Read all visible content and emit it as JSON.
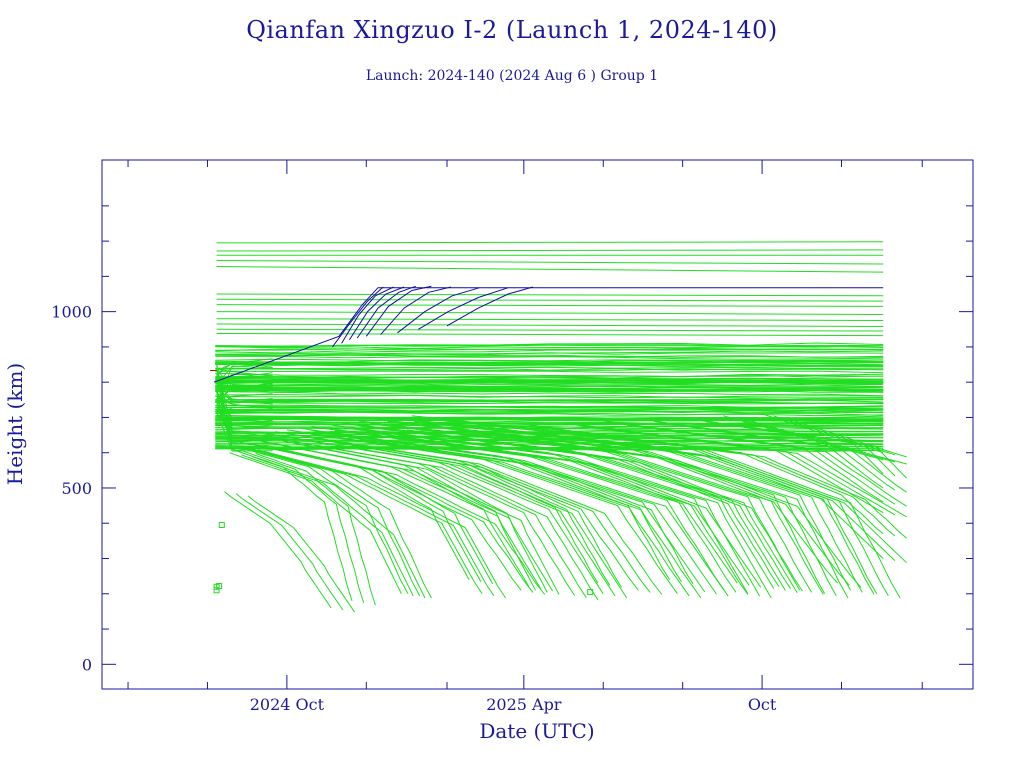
{
  "title": "Qianfan Xingzuo I-2 (Launch 1, 2024-140)",
  "subtitle": "Launch: 2024-140  (2024 Aug  6 )  Group 1",
  "colors": {
    "axis": "#1a1a9a",
    "debris": "#22dd22",
    "satellite": "#1010a0",
    "marker": "#cc0000"
  },
  "chart_data": {
    "type": "line",
    "xlabel": "Date (UTC)",
    "ylabel": "Height (km)",
    "x_axis": {
      "range": [
        "2024-05-12",
        "2026-03-12"
      ],
      "tick_labels": [
        {
          "date": "2024-10-01",
          "label": "2024 Oct"
        },
        {
          "date": "2025-04-01",
          "label": "2025 Apr"
        },
        {
          "date": "2025-10-01",
          "label": "Oct"
        }
      ],
      "minor_ticks": [
        "2024-06-01",
        "2024-08-01",
        "2024-12-01",
        "2025-02-01",
        "2025-06-01",
        "2025-08-01",
        "2025-12-01",
        "2026-02-01"
      ]
    },
    "y_axis": {
      "range": [
        -70,
        1430
      ],
      "major_ticks": [
        0,
        500,
        1000
      ],
      "minor_ticks": [
        100,
        200,
        300,
        400,
        600,
        700,
        800,
        900,
        1100,
        1200,
        1300
      ]
    },
    "grid": false,
    "series": [
      {
        "kind": "satellites",
        "tracks": [
          [
            [
              "2024-08-06",
              800
            ],
            [
              "2024-11-10",
              930
            ],
            [
              "2024-11-28",
              1020
            ],
            [
              "2024-12-10",
              1068
            ],
            [
              "2026-01-02",
              1068
            ]
          ],
          [
            [
              "2024-11-05",
              900
            ],
            [
              "2024-11-20",
              975
            ],
            [
              "2024-12-02",
              1030
            ],
            [
              "2024-12-14",
              1070
            ]
          ],
          [
            [
              "2024-11-12",
              910
            ],
            [
              "2024-11-25",
              990
            ],
            [
              "2024-12-08",
              1045
            ],
            [
              "2024-12-22",
              1070
            ]
          ],
          [
            [
              "2024-11-18",
              920
            ],
            [
              "2024-12-02",
              1000
            ],
            [
              "2024-12-16",
              1050
            ],
            [
              "2024-12-30",
              1070
            ]
          ],
          [
            [
              "2024-11-24",
              925
            ],
            [
              "2024-12-10",
              1010
            ],
            [
              "2024-12-26",
              1055
            ],
            [
              "2025-01-08",
              1072
            ]
          ],
          [
            [
              "2024-12-01",
              930
            ],
            [
              "2024-12-18",
              1015
            ],
            [
              "2025-01-05",
              1060
            ],
            [
              "2025-01-20",
              1072
            ]
          ],
          [
            [
              "2024-12-12",
              935
            ],
            [
              "2024-12-30",
              1010
            ],
            [
              "2025-01-18",
              1055
            ],
            [
              "2025-02-04",
              1070
            ]
          ],
          [
            [
              "2024-12-25",
              940
            ],
            [
              "2025-01-15",
              1000
            ],
            [
              "2025-02-05",
              1045
            ],
            [
              "2025-02-26",
              1068
            ]
          ],
          [
            [
              "2025-01-10",
              950
            ],
            [
              "2025-02-02",
              1000
            ],
            [
              "2025-02-25",
              1040
            ],
            [
              "2025-03-20",
              1068
            ]
          ],
          [
            [
              "2025-02-01",
              960
            ],
            [
              "2025-02-25",
              1010
            ],
            [
              "2025-03-20",
              1050
            ],
            [
              "2025-04-08",
              1070
            ]
          ]
        ]
      },
      {
        "kind": "debris",
        "tracks": [
          [
            [
              "2024-08-08",
              1195
            ],
            [
              "2026-01-02",
              1198
            ]
          ],
          [
            [
              "2024-08-08",
              1172
            ],
            [
              "2026-01-02",
              1175
            ]
          ],
          [
            [
              "2024-08-08",
              1160
            ],
            [
              "2026-01-02",
              1160
            ]
          ],
          [
            [
              "2024-08-08",
              1145
            ],
            [
              "2026-01-02",
              1135
            ]
          ],
          [
            [
              "2024-08-08",
              1128
            ],
            [
              "2026-01-02",
              1112
            ]
          ],
          [
            [
              "2024-08-08",
              1050
            ],
            [
              "2026-01-02",
              1045
            ]
          ],
          [
            [
              "2024-08-08",
              1035
            ],
            [
              "2026-01-02",
              1030
            ]
          ],
          [
            [
              "2024-08-08",
              1020
            ],
            [
              "2026-01-02",
              1015
            ]
          ],
          [
            [
              "2024-08-08",
              1000
            ],
            [
              "2026-01-02",
              992
            ]
          ],
          [
            [
              "2024-08-08",
              980
            ],
            [
              "2026-01-02",
              975
            ]
          ],
          [
            [
              "2024-08-08",
              965
            ],
            [
              "2026-01-02",
              958
            ]
          ],
          [
            [
              "2024-08-08",
              950
            ],
            [
              "2026-01-02",
              945
            ]
          ],
          [
            [
              "2024-08-08",
              938
            ],
            [
              "2026-01-02",
              932
            ]
          ]
        ],
        "band": {
          "min": 600,
          "max": 905,
          "start": "2024-08-07",
          "end": "2026-01-02",
          "count": 130
        },
        "decay_tracks": [
          [
            [
              "2024-08-14",
              490
            ],
            [
              "2024-09-18",
              400
            ],
            [
              "2024-10-12",
              290
            ],
            [
              "2024-11-04",
              160
            ]
          ],
          [
            [
              "2024-08-18",
              600
            ],
            [
              "2024-10-20",
              520
            ],
            [
              "2024-12-04",
              380
            ],
            [
              "2024-12-28",
              200
            ]
          ],
          [
            [
              "2024-08-22",
              620
            ],
            [
              "2024-11-14",
              540
            ],
            [
              "2025-01-28",
              400
            ],
            [
              "2025-02-28",
              200
            ]
          ],
          [
            [
              "2024-08-26",
              630
            ],
            [
              "2024-12-06",
              550
            ],
            [
              "2025-02-20",
              410
            ],
            [
              "2025-03-30",
              210
            ]
          ],
          [
            [
              "2024-09-01",
              640
            ],
            [
              "2024-12-20",
              560
            ],
            [
              "2025-03-12",
              420
            ],
            [
              "2025-04-10",
              210
            ]
          ],
          [
            [
              "2024-09-08",
              650
            ],
            [
              "2025-01-10",
              570
            ],
            [
              "2025-04-01",
              430
            ],
            [
              "2025-05-10",
              195
            ]
          ],
          [
            [
              "2024-09-15",
              655
            ],
            [
              "2025-01-24",
              575
            ],
            [
              "2025-04-20",
              440
            ],
            [
              "2025-06-01",
              200
            ]
          ],
          [
            [
              "2024-09-22",
              660
            ],
            [
              "2025-02-08",
              580
            ],
            [
              "2025-05-15",
              440
            ],
            [
              "2025-06-28",
              210
            ]
          ],
          [
            [
              "2024-10-01",
              665
            ],
            [
              "2025-02-26",
              585
            ],
            [
              "2025-06-12",
              450
            ],
            [
              "2025-07-28",
              200
            ]
          ],
          [
            [
              "2024-10-10",
              670
            ],
            [
              "2025-03-14",
              590
            ],
            [
              "2025-07-01",
              460
            ],
            [
              "2025-08-18",
              205
            ]
          ],
          [
            [
              "2024-10-20",
              675
            ],
            [
              "2025-04-01",
              595
            ],
            [
              "2025-07-20",
              465
            ],
            [
              "2025-09-02",
              210
            ]
          ],
          [
            [
              "2024-11-01",
              680
            ],
            [
              "2025-04-20",
              600
            ],
            [
              "2025-08-10",
              470
            ],
            [
              "2025-09-20",
              200
            ]
          ],
          [
            [
              "2024-11-12",
              685
            ],
            [
              "2025-05-08",
              605
            ],
            [
              "2025-08-30",
              470
            ],
            [
              "2025-10-10",
              215
            ]
          ],
          [
            [
              "2024-11-25",
              690
            ],
            [
              "2025-05-28",
              610
            ],
            [
              "2025-09-20",
              475
            ],
            [
              "2025-10-30",
              210
            ]
          ],
          [
            [
              "2024-12-08",
              695
            ],
            [
              "2025-06-18",
              615
            ],
            [
              "2025-10-10",
              480
            ],
            [
              "2025-11-18",
              200
            ]
          ],
          [
            [
              "2024-12-20",
              700
            ],
            [
              "2025-07-08",
              620
            ],
            [
              "2025-10-30",
              480
            ],
            [
              "2025-12-08",
              210
            ]
          ],
          [
            [
              "2025-01-05",
              705
            ],
            [
              "2025-07-28",
              625
            ],
            [
              "2025-11-20",
              470
            ],
            [
              "2025-12-28",
              200
            ]
          ],
          [
            [
              "2024-08-20",
              610
            ],
            [
              "2024-09-28",
              560
            ],
            [
              "2024-10-30",
              460
            ],
            [
              "2024-11-20",
              180
            ]
          ],
          [
            [
              "2024-08-25",
              615
            ],
            [
              "2024-10-18",
              560
            ],
            [
              "2024-12-01",
              450
            ],
            [
              "2025-01-02",
              200
            ]
          ],
          [
            [
              "2024-09-05",
              625
            ],
            [
              "2024-11-25",
              560
            ],
            [
              "2025-01-20",
              440
            ],
            [
              "2025-02-18",
              240
            ]
          ],
          [
            [
              "2024-09-25",
              635
            ],
            [
              "2024-12-30",
              565
            ],
            [
              "2025-03-01",
              440
            ],
            [
              "2025-04-05",
              220
            ]
          ],
          [
            [
              "2024-10-15",
              645
            ],
            [
              "2025-02-10",
              570
            ],
            [
              "2025-04-25",
              445
            ],
            [
              "2025-05-28",
              230
            ]
          ],
          [
            [
              "2024-11-08",
              650
            ],
            [
              "2025-03-25",
              575
            ],
            [
              "2025-06-20",
              450
            ],
            [
              "2025-07-22",
              240
            ]
          ],
          [
            [
              "2024-12-01",
              660
            ],
            [
              "2025-05-05",
              580
            ],
            [
              "2025-08-01",
              455
            ],
            [
              "2025-09-12",
              230
            ]
          ],
          [
            [
              "2025-01-01",
              665
            ],
            [
              "2025-06-10",
              585
            ],
            [
              "2025-09-05",
              455
            ],
            [
              "2025-10-14",
              220
            ]
          ],
          [
            [
              "2025-02-01",
              670
            ],
            [
              "2025-07-10",
              590
            ],
            [
              "2025-10-10",
              460
            ],
            [
              "2025-11-28",
              230
            ]
          ],
          [
            [
              "2025-03-01",
              675
            ],
            [
              "2025-08-15",
              595
            ],
            [
              "2025-11-15",
              470
            ],
            [
              "2026-01-02",
              300
            ]
          ],
          [
            [
              "2025-04-01",
              680
            ],
            [
              "2025-09-15",
              600
            ],
            [
              "2025-12-01",
              480
            ],
            [
              "2026-01-02",
              370
            ]
          ],
          [
            [
              "2025-05-01",
              685
            ],
            [
              "2025-10-10",
              610
            ],
            [
              "2026-01-02",
              430
            ]
          ],
          [
            [
              "2025-06-01",
              690
            ],
            [
              "2025-11-01",
              615
            ],
            [
              "2026-01-02",
              460
            ]
          ],
          [
            [
              "2025-07-01",
              695
            ],
            [
              "2025-11-20",
              620
            ],
            [
              "2026-01-02",
              500
            ]
          ],
          [
            [
              "2025-08-01",
              700
            ],
            [
              "2025-12-10",
              630
            ],
            [
              "2026-01-02",
              540
            ]
          ],
          [
            [
              "2025-09-01",
              705
            ],
            [
              "2026-01-02",
              580
            ]
          ],
          [
            [
              "2025-10-01",
              710
            ],
            [
              "2026-01-02",
              600
            ]
          ]
        ],
        "markers": [
          [
            "2024-08-12",
            395
          ],
          [
            "2024-08-08",
            210
          ],
          [
            "2024-08-08",
            220
          ],
          [
            "2024-08-10",
            222
          ],
          [
            "2025-05-22",
            205
          ]
        ]
      },
      {
        "kind": "launch-marker",
        "tracks": [
          [
            [
              "2024-08-03",
              833
            ],
            [
              "2024-08-08",
              833
            ]
          ]
        ]
      }
    ]
  }
}
